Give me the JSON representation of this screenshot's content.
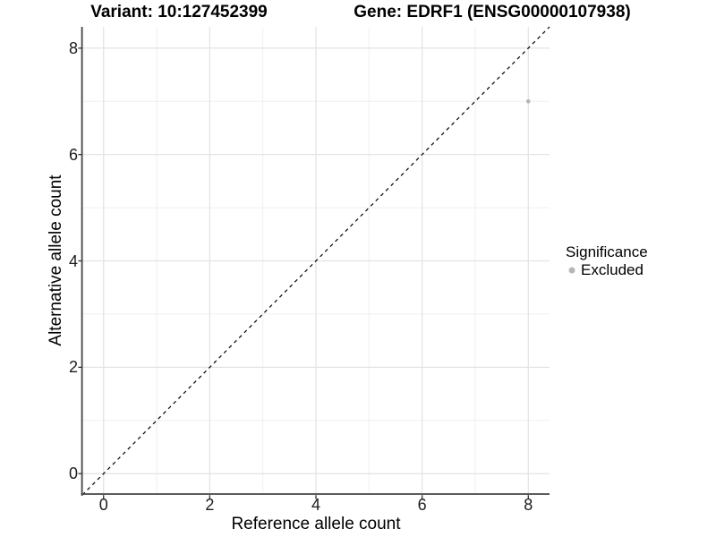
{
  "header": {
    "variant_title": "Variant: 10:127452399",
    "gene_title": "Gene: EDRF1 (ENSG00000107938)"
  },
  "legend": {
    "title": "Significance",
    "items": [
      {
        "label": "Excluded",
        "color": "#b5b5b5"
      }
    ]
  },
  "colors": {
    "background": "#ffffff",
    "grid_major": "#e3e3e3",
    "grid_minor": "#efefef",
    "axis_line": "#444444",
    "tick_mark": "#333333",
    "point": "#b5b5b5",
    "reference_line": "#000000",
    "text": "#000000"
  },
  "chart_data": {
    "type": "scatter",
    "title": "Variant: 10:127452399 | Gene: EDRF1 (ENSG00000107938)",
    "xlabel": "Reference allele count",
    "ylabel": "Alternative allele count",
    "xlim": [
      -0.4,
      8.4
    ],
    "ylim": [
      -0.4,
      8.4
    ],
    "x_ticks": [
      0,
      2,
      4,
      6,
      8
    ],
    "y_ticks": [
      0,
      2,
      4,
      6,
      8
    ],
    "x_minor_ticks": [
      1,
      3,
      5,
      7
    ],
    "y_minor_ticks": [
      1,
      3,
      5,
      7
    ],
    "grid": true,
    "legend_position": "right",
    "series": [
      {
        "name": "Excluded",
        "color": "#b5b5b5",
        "points": [
          {
            "x": 8,
            "y": 7
          }
        ]
      }
    ],
    "reference_line": {
      "kind": "identity",
      "style": "dashed",
      "from": [
        -0.4,
        -0.4
      ],
      "to": [
        8.4,
        8.4
      ]
    }
  }
}
